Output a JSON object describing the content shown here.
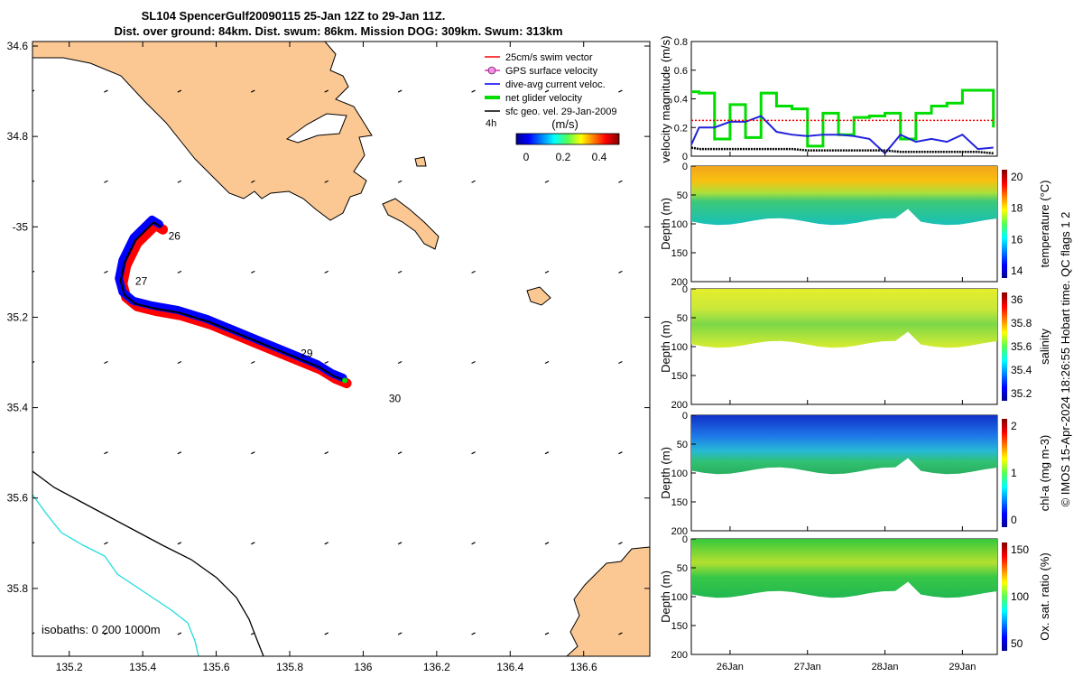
{
  "header": {
    "title_line1": "SL104 SpencerGulf20090115 25-Jan 12Z to 29-Jan 11Z.",
    "title_line2": "Dist. over ground: 84km. Dist. swum: 86km. Mission DOG: 309km. Swum: 313km"
  },
  "colors": {
    "land": "#fbc893",
    "gps_velocity": "#ff22cc",
    "swim_vector": "#ff0000",
    "dive_avg_current": "#0000ff",
    "net_glider": "#00dd00",
    "sfc_geo_vel": "#000000",
    "isobath_200": "#000000",
    "isobath_1000": "#22dddd"
  },
  "map": {
    "legend": {
      "items": [
        {
          "label": "25cm/s swim vector",
          "color": "#ff0000"
        },
        {
          "label": "GPS surface velocity",
          "color": "#ff22cc"
        },
        {
          "label": "dive-avg current veloc.",
          "color": "#0000ff"
        },
        {
          "label": "net glider velocity",
          "color": "#00dd00"
        },
        {
          "label": "sfc geo. vel. 29-Jan-2009",
          "color": "#000000"
        }
      ],
      "interval": "4h",
      "colorbar_unit": "(m/s)",
      "colorbar_ticks": [
        "0",
        "0.2",
        "0.4"
      ]
    },
    "lon_ticks": [
      "135.2",
      "135.4",
      "135.6",
      "135.8",
      "136",
      "136.2",
      "136.4",
      "136.6"
    ],
    "lat_ticks": [
      "34.6",
      "34.8",
      "-35",
      "35.2",
      "35.4",
      "35.6",
      "35.8"
    ],
    "day_labels": [
      "26",
      "27",
      "29",
      "30"
    ],
    "isobaths_label": "isobaths: 0   200  1000m"
  },
  "side": {
    "time_ticks": [
      "26Jan",
      "27Jan",
      "28Jan",
      "29Jan"
    ],
    "depth_ticks": [
      "0",
      "50",
      "100",
      "150",
      "200"
    ],
    "velocity_panel": {
      "ylabel": "velocity magnitude (m/s)",
      "yticks": [
        "0",
        "0.2",
        "0.4",
        "0.6",
        "0.8"
      ]
    },
    "panels": [
      {
        "ylabel": "Depth (m)",
        "cbar_label": "temperature (°C)",
        "cbar_ticks": [
          "20",
          "18",
          "16",
          "14"
        ]
      },
      {
        "ylabel": "Depth (m)",
        "cbar_label": "salinity",
        "cbar_ticks": [
          "36",
          "35.8",
          "35.6",
          "35.4",
          "35.2"
        ]
      },
      {
        "ylabel": "Depth (m)",
        "cbar_label": "chl-a (mg m-3)",
        "cbar_ticks": [
          "2",
          "1",
          "0"
        ]
      },
      {
        "ylabel": "Depth (m)",
        "cbar_label": "Ox. sat. ratio (%)",
        "cbar_ticks": [
          "150",
          "100",
          "50"
        ]
      }
    ],
    "footer": "© IMOS 15-Apr-2024 18:26:55 Hobart time. QC flags 1  2"
  },
  "chart_data": [
    {
      "type": "scatter",
      "title": "SL104 SpencerGulf20090115 25-Jan 12Z to 29-Jan 11Z.",
      "xlim": [
        135.1,
        136.78
      ],
      "ylim": [
        -35.95,
        -34.59
      ],
      "track": {
        "lon": [
          135.45,
          135.43,
          135.38,
          135.35,
          135.34,
          135.35,
          135.38,
          135.43,
          135.5,
          135.58,
          135.64,
          135.7,
          135.76,
          135.82,
          135.88,
          135.92,
          135.95
        ],
        "lat": [
          -35.0,
          -34.99,
          -35.03,
          -35.08,
          -35.12,
          -35.15,
          -35.17,
          -35.18,
          -35.19,
          -35.21,
          -35.23,
          -35.25,
          -35.27,
          -35.29,
          -35.31,
          -35.33,
          -35.34
        ]
      },
      "day_marks": [
        {
          "label": "26",
          "lon": 135.46,
          "lat": -35.02
        },
        {
          "label": "27",
          "lon": 135.37,
          "lat": -35.12
        },
        {
          "label": "29",
          "lon": 135.82,
          "lat": -35.28
        },
        {
          "label": "30",
          "lon": 136.06,
          "lat": -35.38
        }
      ]
    },
    {
      "type": "line",
      "ylabel": "velocity magnitude (m/s)",
      "ylim": [
        0,
        0.8
      ],
      "x": [
        25.5,
        25.6,
        25.8,
        26.0,
        26.2,
        26.4,
        26.6,
        26.8,
        27.0,
        27.2,
        27.4,
        27.6,
        27.8,
        28.0,
        28.2,
        28.4,
        28.6,
        28.8,
        29.0,
        29.2,
        29.4
      ],
      "series": [
        {
          "name": "net glider velocity",
          "values": [
            0.45,
            0.44,
            0.12,
            0.36,
            0.13,
            0.44,
            0.35,
            0.33,
            0.07,
            0.3,
            0.15,
            0.27,
            0.28,
            0.3,
            0.12,
            0.3,
            0.35,
            0.37,
            0.46,
            0.46,
            0.2
          ]
        },
        {
          "name": "dive-avg current veloc.",
          "values": [
            0.08,
            0.2,
            0.2,
            0.24,
            0.24,
            0.28,
            0.17,
            0.15,
            0.14,
            0.15,
            0.15,
            0.14,
            0.12,
            0.02,
            0.15,
            0.1,
            0.12,
            0.1,
            0.15,
            0.05,
            0.06
          ]
        },
        {
          "name": "25cm/s swim vector",
          "values": [
            0.25,
            0.25,
            0.25,
            0.25,
            0.25,
            0.25,
            0.25,
            0.25,
            0.25,
            0.25,
            0.25,
            0.25,
            0.25,
            0.25,
            0.25,
            0.25,
            0.25,
            0.25,
            0.25,
            0.25,
            0.25
          ]
        },
        {
          "name": "GPS surface velocity",
          "values": [
            0.06,
            0.05,
            0.05,
            0.05,
            0.05,
            0.05,
            0.05,
            0.05,
            0.04,
            0.04,
            0.04,
            0.04,
            0.04,
            0.04,
            0.03,
            0.03,
            0.03,
            0.03,
            0.03,
            0.03,
            0.02
          ]
        }
      ]
    }
  ]
}
